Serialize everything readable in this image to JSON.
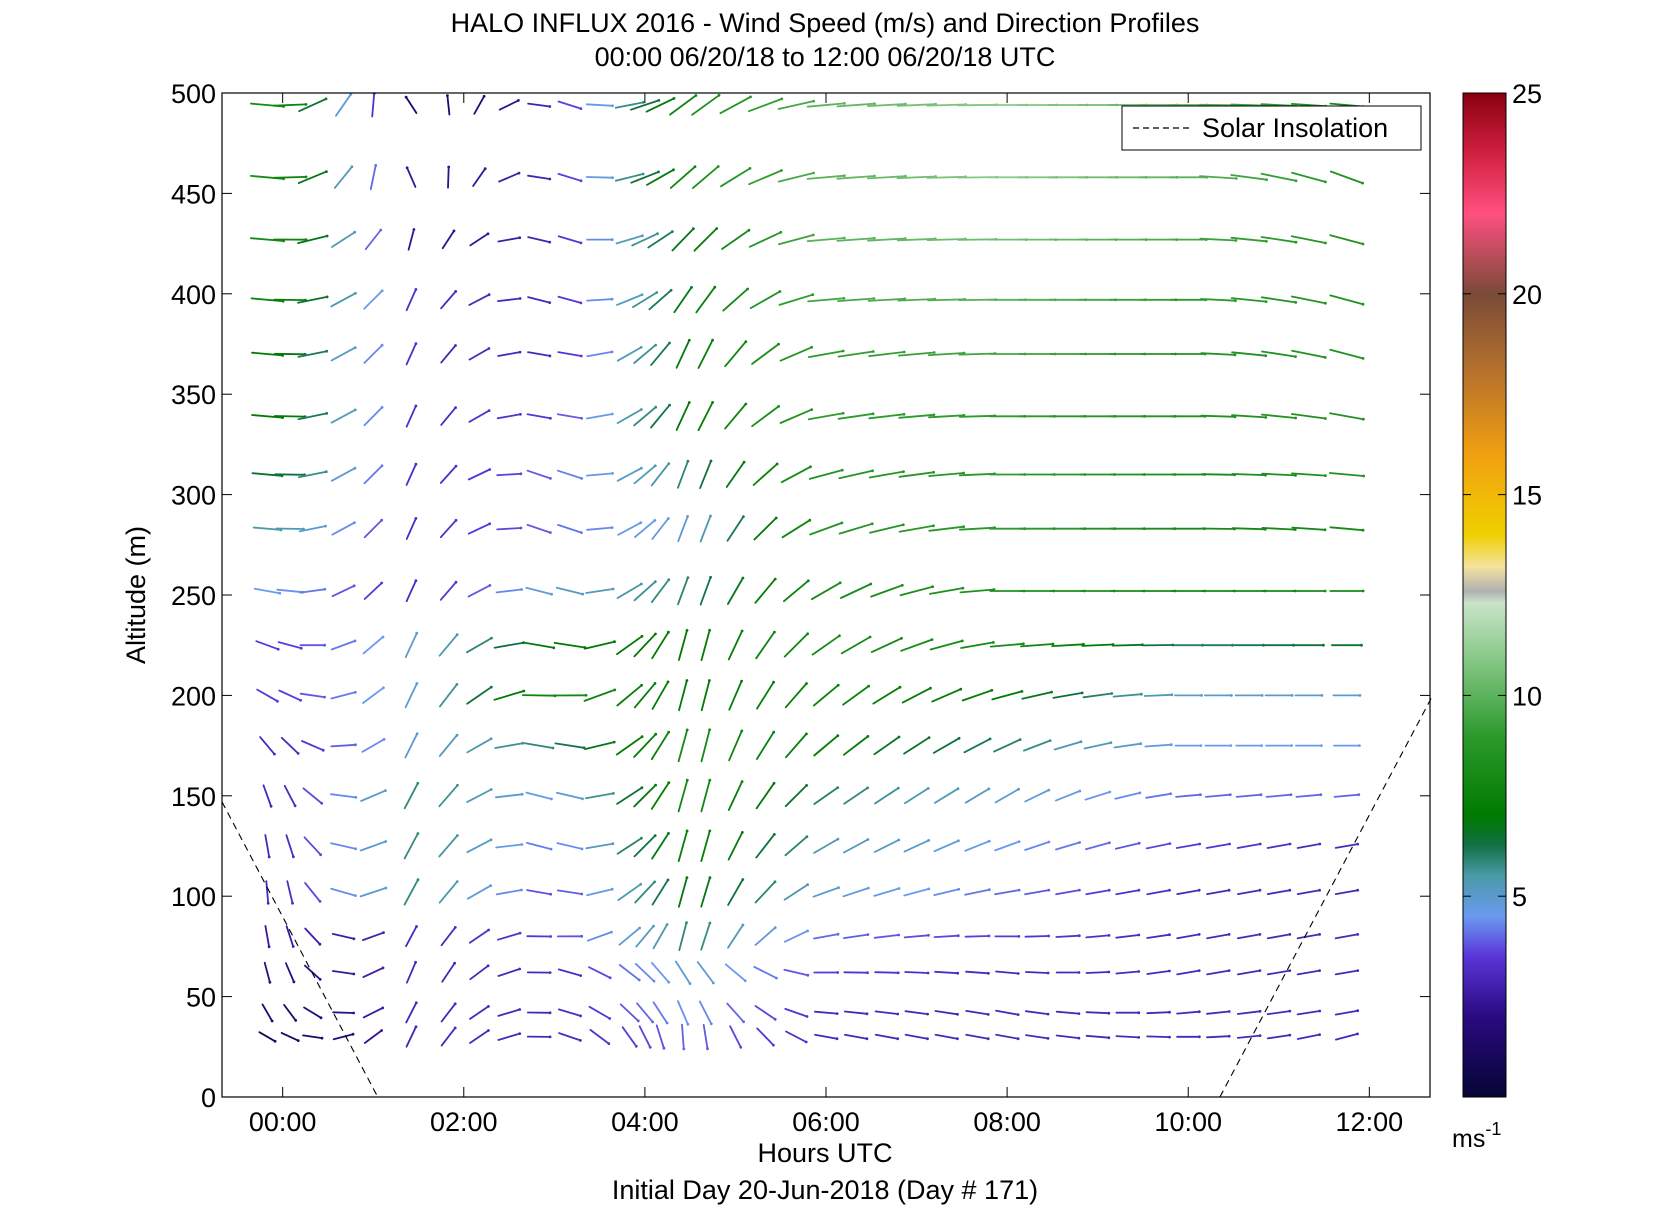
{
  "chart_data": {
    "type": "quiver",
    "title": "HALO INFLUX 2016 - Wind Speed (m/s) and Direction Profiles",
    "subtitle": "00:00 06/20/18 to 12:00 06/20/18  UTC",
    "xlabel": "Hours UTC",
    "xlabel2": "Initial Day 20-Jun-2018 (Day # 171)",
    "ylabel": "Altitude (m)",
    "x_unit": "hours",
    "xlim": [
      -0.67,
      12.67
    ],
    "ylim": [
      0,
      500
    ],
    "x_ticks": [
      0,
      2,
      4,
      6,
      8,
      10,
      12
    ],
    "x_tick_labels": [
      "00:00",
      "02:00",
      "04:00",
      "06:00",
      "08:00",
      "10:00",
      "12:00"
    ],
    "y_ticks": [
      0,
      50,
      100,
      150,
      200,
      250,
      300,
      350,
      400,
      450,
      500
    ],
    "y_tick_labels": [
      "0",
      "50",
      "100",
      "150",
      "200",
      "250",
      "300",
      "350",
      "400",
      "450",
      "500"
    ],
    "grid": false,
    "legend": {
      "placement": "top-right",
      "entries": [
        "Solar Insolation"
      ]
    },
    "colorbar": {
      "range": [
        0,
        25
      ],
      "ticks": [
        5,
        10,
        15,
        20,
        25
      ],
      "tick_labels": [
        "5",
        "10",
        "15",
        "20",
        "25"
      ],
      "unit_label": "ms",
      "unit_exponent": "-1",
      "stops": [
        {
          "v": 0,
          "c": "#050535"
        },
        {
          "v": 2,
          "c": "#2a0a80"
        },
        {
          "v": 3.5,
          "c": "#5a35d8"
        },
        {
          "v": 4.5,
          "c": "#6a9af0"
        },
        {
          "v": 5.5,
          "c": "#4a9aa8"
        },
        {
          "v": 6.3,
          "c": "#107040"
        },
        {
          "v": 7,
          "c": "#007a00"
        },
        {
          "v": 9,
          "c": "#2c9a2c"
        },
        {
          "v": 11,
          "c": "#8cca8c"
        },
        {
          "v": 12.3,
          "c": "#c8e4c8"
        },
        {
          "v": 12.6,
          "c": "#b0b0b0"
        },
        {
          "v": 13.2,
          "c": "#f4e2a0"
        },
        {
          "v": 14,
          "c": "#f0d000"
        },
        {
          "v": 16,
          "c": "#f0a010"
        },
        {
          "v": 18,
          "c": "#b8722c"
        },
        {
          "v": 20,
          "c": "#7a4a38"
        },
        {
          "v": 22,
          "c": "#ff5080"
        },
        {
          "v": 23.5,
          "c": "#d02040"
        },
        {
          "v": 25,
          "c": "#8a0010"
        }
      ]
    },
    "solar_insolation": {
      "style": "dashed",
      "segments": [
        [
          [
            -0.67,
            147
          ],
          [
            1.05,
            0
          ]
        ],
        [
          [
            10.35,
            0
          ],
          [
            12.7,
            200
          ]
        ]
      ]
    },
    "wind_samples": {
      "times": [
        -0.17,
        0.08,
        0.33,
        0.67,
        1.0,
        1.42,
        1.83,
        2.17,
        2.5,
        2.83,
        3.17,
        3.5,
        3.83,
        4.0,
        4.17,
        4.42,
        4.67,
        5.0,
        5.33,
        5.67,
        6.0,
        6.33,
        6.67,
        7.0,
        7.33,
        7.67,
        8.0,
        8.33,
        8.67,
        9.0,
        9.33,
        9.67,
        10.0,
        10.33,
        10.67,
        11.0,
        11.33,
        11.75
      ],
      "altitudes": [
        30,
        42,
        62,
        80,
        102,
        125,
        150,
        175,
        200,
        225,
        252,
        283,
        310,
        339,
        370,
        397,
        427,
        458,
        494
      ],
      "profile_note": "speed in m/s; direction in degrees the wind vector points toward (0 = up/north, 90 = right/east)",
      "profiles": [
        {
          "t": 0.0,
          "speeds": [
            1,
            1.5,
            2,
            2.5,
            3,
            3,
            3,
            3,
            3.5,
            3.5,
            4.5,
            5.5,
            6.5,
            7,
            7,
            7.5,
            8,
            8,
            8
          ],
          "dirs": [
            120,
            150,
            165,
            170,
            175,
            170,
            160,
            140,
            120,
            110,
            100,
            95,
            95,
            95,
            95,
            95,
            95,
            95,
            95
          ]
        },
        {
          "t": 1.5,
          "speeds": [
            3,
            3,
            3,
            3,
            6,
            6,
            6,
            5,
            5,
            5,
            3,
            3,
            3,
            3,
            3,
            3,
            2,
            2,
            1
          ],
          "dirs": [
            20,
            20,
            15,
            20,
            20,
            20,
            20,
            20,
            20,
            20,
            20,
            20,
            20,
            20,
            20,
            20,
            10,
            330,
            320
          ]
        },
        {
          "t": 3.0,
          "speeds": [
            3,
            3,
            3,
            3.5,
            3.5,
            4,
            4.5,
            6,
            8,
            7,
            5,
            4,
            4,
            3.5,
            3,
            3,
            3,
            3,
            3
          ],
          "dirs": [
            100,
            100,
            100,
            100,
            110,
            115,
            115,
            110,
            100,
            110,
            115,
            120,
            120,
            110,
            110,
            115,
            115,
            115,
            115
          ]
        },
        {
          "t": 4.5,
          "speeds": [
            4,
            4.5,
            5,
            6,
            7,
            7.5,
            8,
            8,
            7,
            7,
            6,
            5,
            6,
            7,
            7,
            7,
            7,
            8,
            8
          ],
          "dirs": [
            180,
            160,
            150,
            10,
            10,
            10,
            10,
            10,
            10,
            10,
            15,
            15,
            15,
            20,
            20,
            30,
            40,
            45,
            50
          ]
        },
        {
          "t": 6.0,
          "speeds": [
            3,
            3,
            3.5,
            4,
            5,
            5.5,
            6,
            7,
            7.5,
            8,
            8,
            8.5,
            8.5,
            9,
            9,
            9.5,
            10,
            10,
            10
          ],
          "dirs": [
            100,
            95,
            90,
            80,
            70,
            60,
            55,
            50,
            50,
            55,
            60,
            70,
            75,
            80,
            80,
            85,
            85,
            85,
            85
          ]
        },
        {
          "t": 8.0,
          "speeds": [
            3,
            3,
            3,
            3.5,
            4,
            4.5,
            5,
            6,
            7,
            8,
            8.5,
            9,
            9,
            9,
            9.5,
            10,
            10.5,
            11,
            11
          ],
          "dirs": [
            100,
            100,
            95,
            90,
            80,
            70,
            60,
            65,
            75,
            85,
            90,
            90,
            90,
            90,
            90,
            90,
            90,
            90,
            90
          ]
        },
        {
          "t": 10.0,
          "speeds": [
            3,
            3,
            3,
            3,
            3,
            3.5,
            4,
            4.5,
            5,
            6,
            8,
            8,
            8,
            8.5,
            8.5,
            9,
            9.5,
            10,
            10
          ],
          "dirs": [
            90,
            85,
            80,
            80,
            80,
            80,
            85,
            90,
            90,
            90,
            90,
            90,
            90,
            90,
            90,
            90,
            90,
            90,
            90
          ]
        },
        {
          "t": 11.75,
          "speeds": [
            3,
            3,
            3,
            3,
            3,
            3,
            4,
            4.5,
            5,
            6.5,
            8,
            8,
            8.5,
            8.5,
            8.5,
            8.5,
            8.5,
            8.5,
            8
          ],
          "dirs": [
            75,
            80,
            80,
            80,
            80,
            80,
            85,
            90,
            90,
            90,
            90,
            95,
            95,
            100,
            105,
            105,
            105,
            110,
            95
          ]
        }
      ]
    }
  }
}
